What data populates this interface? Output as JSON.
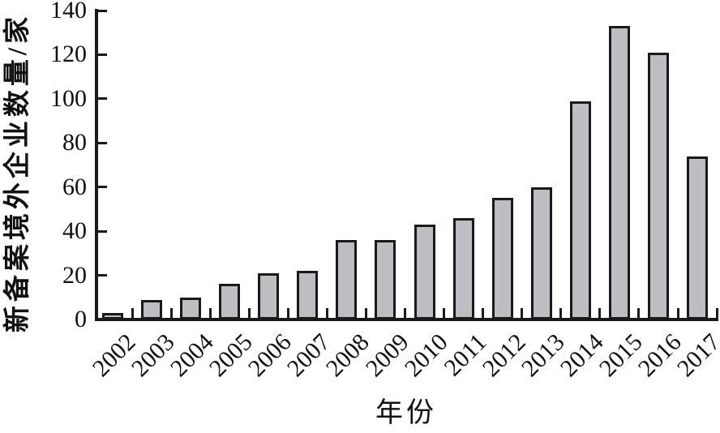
{
  "chart_data": {
    "type": "bar",
    "categories": [
      "2002",
      "2003",
      "2004",
      "2005",
      "2006",
      "2007",
      "2008",
      "2009",
      "2010",
      "2011",
      "2012",
      "2013",
      "2014",
      "2015",
      "2016",
      "2017"
    ],
    "values": [
      3,
      9,
      10,
      16,
      21,
      22,
      36,
      36,
      43,
      46,
      55,
      60,
      99,
      133,
      121,
      74
    ],
    "xlabel": "年份",
    "ylabel": "新备案境外企业数量/家",
    "yticks": [
      0,
      20,
      40,
      60,
      80,
      100,
      120,
      140
    ],
    "ylim": [
      0,
      140
    ],
    "grid": "off",
    "legend": "none",
    "bar_fill": "#bebec2",
    "bar_stroke": "#1a1a1a"
  }
}
